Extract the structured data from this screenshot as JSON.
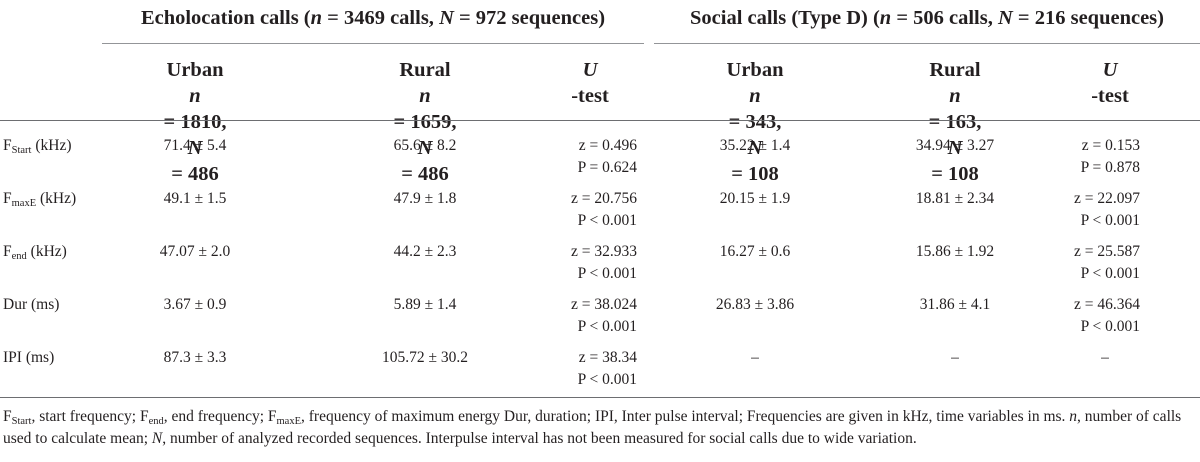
{
  "groups": {
    "echo": {
      "title_main": "Echolocation calls",
      "n_sym": "n",
      "n_text": " = 3469 calls, ",
      "N_sym": "N",
      "N_text": " = 972 sequences)"
    },
    "social": {
      "title_main": "Social calls (Type D)",
      "n_sym": "n",
      "n_text": " = 506 calls, ",
      "N_sym": "N",
      "N_text": " = 216 sequences)"
    }
  },
  "columns": [
    {
      "label": "Urban",
      "n_sym": "n",
      "n_val": " = 1810,",
      "N_sym": "N",
      "N_val": " = 486"
    },
    {
      "label": "Rural",
      "n_sym": "n",
      "n_val": " = 1659,",
      "N_sym": "N",
      "N_val": " = 486"
    },
    {
      "u_sym": "U",
      "u_text": "-test"
    },
    {
      "label": "Urban",
      "n_sym": "n",
      "n_val": " = 343,",
      "N_sym": "N",
      "N_val": " = 108"
    },
    {
      "label": "Rural",
      "n_sym": "n",
      "n_val": " = 163,",
      "N_sym": "N",
      "N_val": " = 108"
    },
    {
      "u_sym": "U",
      "u_text": "-test"
    }
  ],
  "rows": [
    {
      "label_main": "F",
      "label_sub": "Start",
      "unit": " (kHz)",
      "echo_urban": "71.4 ± 5.4",
      "echo_rural": "65.6 ± 8.2",
      "echo_z": "z = 0.496",
      "echo_p": "P = 0.624",
      "social_urban": "35.22 ± 1.4",
      "social_rural": "34.94 ± 3.27",
      "social_z": "z = 0.153",
      "social_p": "P = 0.878"
    },
    {
      "label_main": "F",
      "label_sub": "maxE",
      "unit": " (kHz)",
      "echo_urban": "49.1 ± 1.5",
      "echo_rural": "47.9 ± 1.8",
      "echo_z": "z = 20.756",
      "echo_p": "P < 0.001",
      "social_urban": "20.15 ± 1.9",
      "social_rural": "18.81 ± 2.34",
      "social_z": "z = 22.097",
      "social_p": "P < 0.001"
    },
    {
      "label_main": "F",
      "label_sub": "end",
      "unit": " (kHz)",
      "echo_urban": "47.07 ± 2.0",
      "echo_rural": "44.2 ± 2.3",
      "echo_z": "z = 32.933",
      "echo_p": "P < 0.001",
      "social_urban": "16.27 ± 0.6",
      "social_rural": "15.86 ± 1.92",
      "social_z": "z = 25.587",
      "social_p": "P < 0.001"
    },
    {
      "label_main": "Dur",
      "label_sub": "",
      "unit": " (ms)",
      "echo_urban": "3.67 ± 0.9",
      "echo_rural": "5.89 ± 1.4",
      "echo_z": "z = 38.024",
      "echo_p": "P < 0.001",
      "social_urban": "26.83 ± 3.86",
      "social_rural": "31.86 ± 4.1",
      "social_z": "z = 46.364",
      "social_p": "P < 0.001"
    },
    {
      "label_main": "IPI",
      "label_sub": "",
      "unit": " (ms)",
      "echo_urban": "87.3 ± 3.3",
      "echo_rural": "105.72 ± 30.2",
      "echo_z": "z = 38.34",
      "echo_p": "P < 0.001",
      "social_urban": "–",
      "social_rural": "–",
      "social_z": "–",
      "social_p": ""
    }
  ],
  "footnote": {
    "f_start_main": "F",
    "f_start_sub": "Start",
    "f_start_text": ", start frequency; ",
    "f_end_main": "F",
    "f_end_sub": "end",
    "f_end_text": ", end frequency; ",
    "f_maxe_main": "F",
    "f_maxe_sub": "maxE",
    "f_maxe_text": ", frequency of maximum energy Dur, duration; IPI, Inter pulse interval; Frequencies are given in kHz, time variables in ms. ",
    "n_sym": "n",
    "n_text": ", number of calls used to calculate mean; ",
    "N_sym": "N",
    "N_text": ", number of analyzed recorded sequences. Interpulse interval has not been measured for social calls due to wide variation."
  }
}
